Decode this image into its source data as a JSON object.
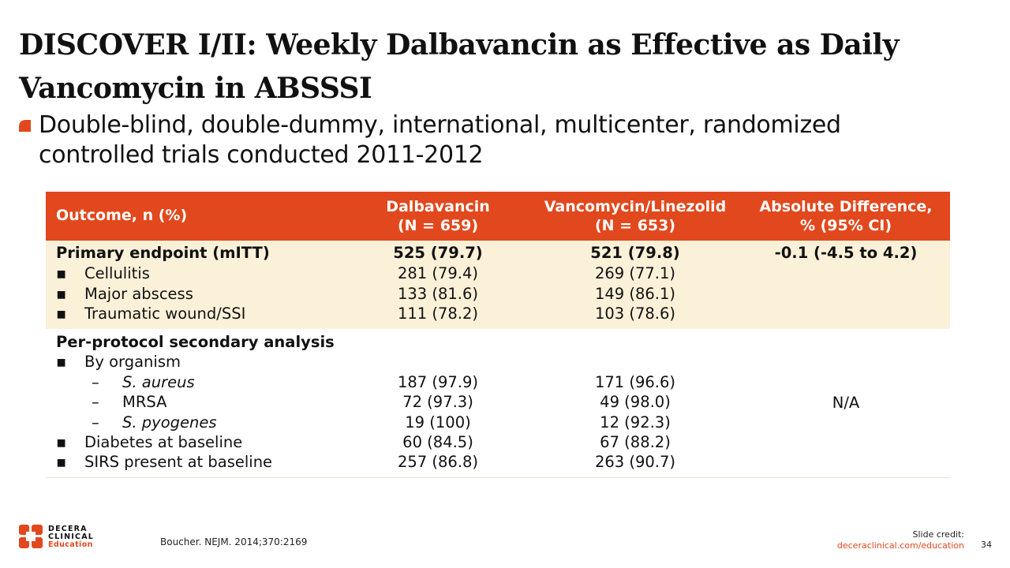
{
  "slide": {
    "title": "DISCOVER I/II: Weekly Dalbavancin as Effective as Daily Vancomycin in ABSSSI",
    "bullet": "Double-blind, double-dummy, international, multicenter, randomized controlled trials conducted 2011-2012",
    "accent_color": "#e2481d"
  },
  "table": {
    "headers": {
      "outcome": "Outcome, n (%)",
      "dalba_line1": "Dalbavancin",
      "dalba_line2": "(N = 659)",
      "vanco_line1": "Vancomycin/Linezolid",
      "vanco_line2": "(N = 653)",
      "diff_line1": "Absolute Difference,",
      "diff_line2": "% (95% CI)"
    },
    "bullet_glyph": "▪",
    "dash_glyph": "–",
    "primary": {
      "label": "Primary endpoint (mITT)",
      "dalba": "525 (79.7)",
      "vanco": "521 (79.8)",
      "diff": "-0.1 (-4.5 to 4.2)",
      "rows": [
        {
          "label": "Cellulitis",
          "dalba": "281 (79.4)",
          "vanco": "269 (77.1)"
        },
        {
          "label": "Major abscess",
          "dalba": "133 (81.6)",
          "vanco": "149 (86.1)"
        },
        {
          "label": "Traumatic wound/SSI",
          "dalba": "111 (78.2)",
          "vanco": "103 (78.6)"
        }
      ]
    },
    "secondary": {
      "label": "Per-protocol secondary analysis",
      "by_organism": "By organism",
      "organisms": [
        {
          "label": "S. aureus",
          "dalba": "187 (97.9)",
          "vanco": "171 (96.6)"
        },
        {
          "label": "MRSA",
          "dalba": "72 (97.3)",
          "vanco": "49 (98.0)"
        },
        {
          "label": "S. pyogenes",
          "dalba": "19 (100)",
          "vanco": "12 (92.3)"
        }
      ],
      "rows": [
        {
          "label": "Diabetes at baseline",
          "dalba": "60 (84.5)",
          "vanco": "67 (88.2)"
        },
        {
          "label": "SIRS present at baseline",
          "dalba": "257 (86.8)",
          "vanco": "263 (90.7)"
        }
      ],
      "diff": "N/A"
    }
  },
  "footer": {
    "logo_line1": "DECERA",
    "logo_line2": "CLINICAL",
    "logo_line3": "Education",
    "citation": "Boucher. NEJM. 2014;370:2169",
    "credit_label": "Slide credit:",
    "credit_url": "deceraclinical.com/education",
    "page_number": "34"
  }
}
